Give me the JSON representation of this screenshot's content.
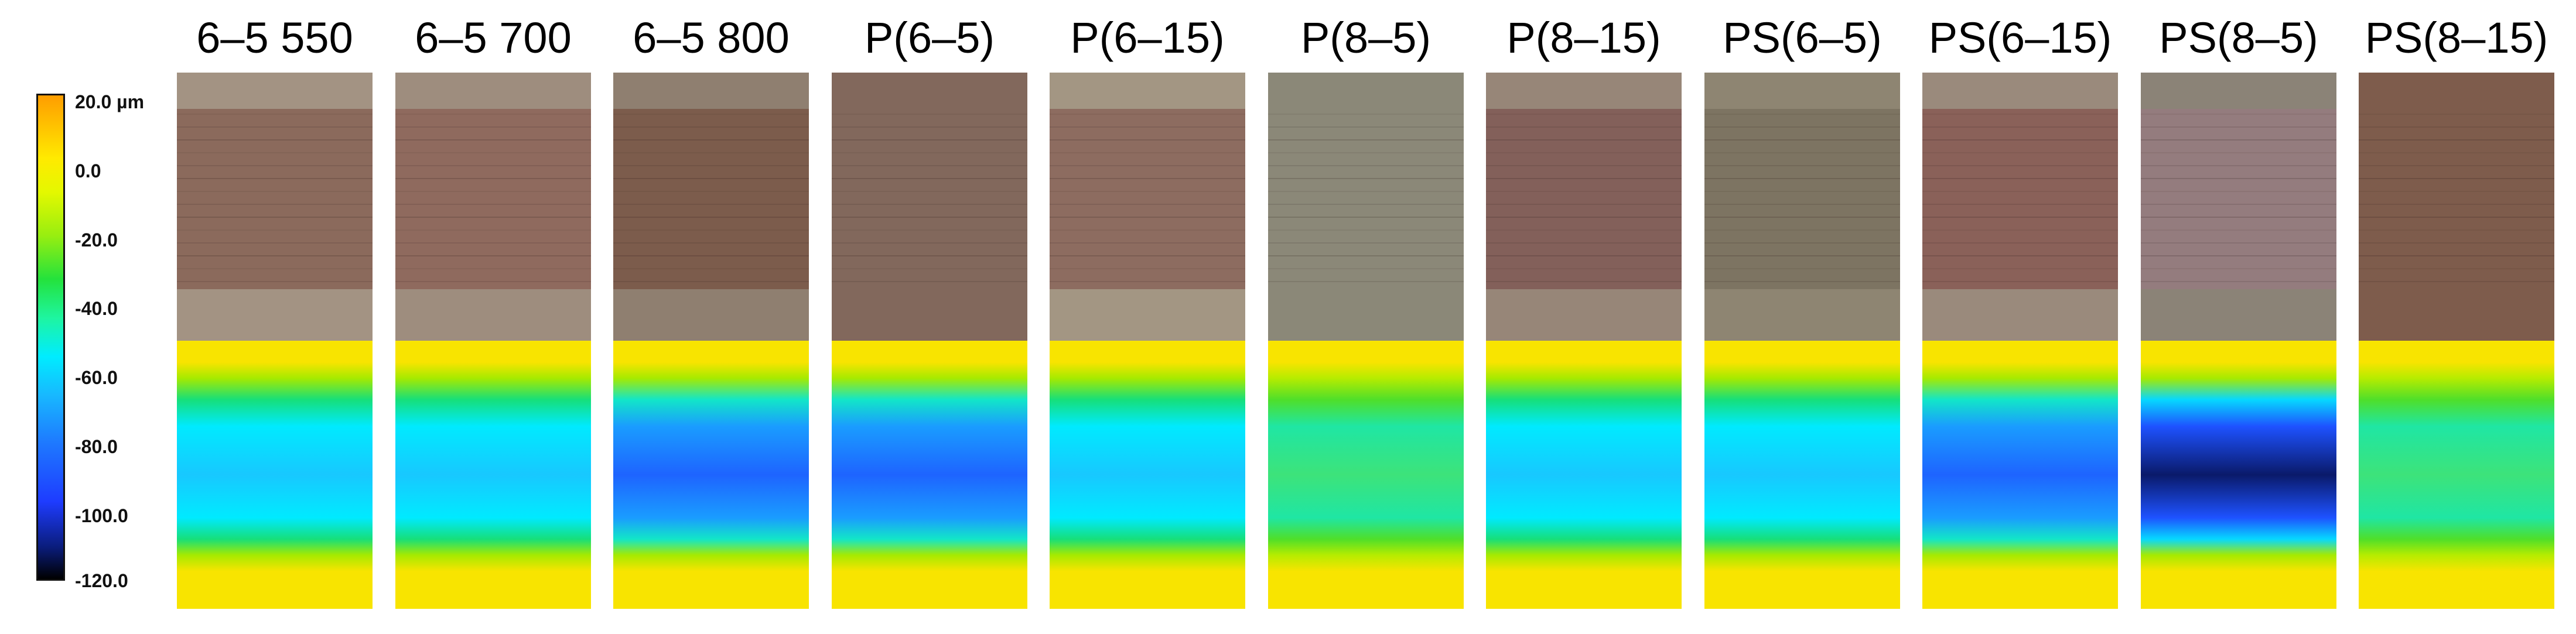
{
  "legend": {
    "ticks": [
      "20.0 µm",
      "0.0",
      "-20.0",
      "-40.0",
      "-60.0",
      "-80.0",
      "-100.0",
      "-120.0"
    ]
  },
  "samples": [
    {
      "title": "6–5 550",
      "photo": {
        "base": "#8b6a5c",
        "edge": "#a39383"
      },
      "depth": "mid"
    },
    {
      "title": "6–5 700",
      "photo": {
        "base": "#8f6a5e",
        "edge": "#9e8d7e"
      },
      "depth": "mid"
    },
    {
      "title": "6–5 800",
      "photo": {
        "base": "#7c5c4c",
        "edge": "#8f7f70"
      },
      "depth": "deep"
    },
    {
      "title": "P(6–5)",
      "photo": {
        "base": "#82685c",
        "edge": "#82685c"
      },
      "depth": "deep"
    },
    {
      "title": "P(6–15)",
      "photo": {
        "base": "#8d6c60",
        "edge": "#a39683"
      },
      "depth": "mid"
    },
    {
      "title": "P(8–5)",
      "photo": {
        "base": "#8b8878",
        "edge": "#8b8878"
      },
      "depth": "shallow"
    },
    {
      "title": "P(8–15)",
      "photo": {
        "base": "#83605a",
        "edge": "#978678"
      },
      "depth": "mid"
    },
    {
      "title": "PS(6–5)",
      "photo": {
        "base": "#7d7462",
        "edge": "#8e8572"
      },
      "depth": "mid"
    },
    {
      "title": "PS(6–15)",
      "photo": {
        "base": "#8a6159",
        "edge": "#9a8a7c"
      },
      "depth": "deep"
    },
    {
      "title": "PS(8–5)",
      "photo": {
        "base": "#947c7e",
        "edge": "#8b8377"
      },
      "depth": "deepest"
    },
    {
      "title": "PS(8–15)",
      "photo": {
        "base": "#7e5c4c",
        "edge": "#7e5c4c"
      },
      "depth": "shallow"
    }
  ]
}
